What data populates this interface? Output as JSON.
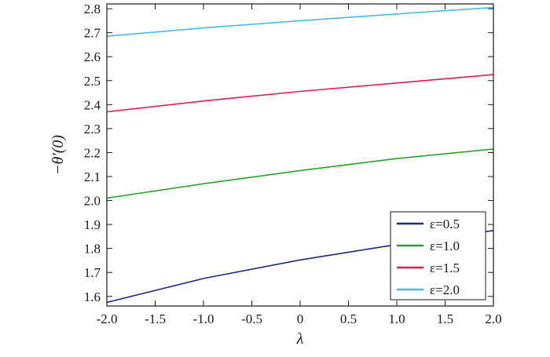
{
  "chart_data": {
    "type": "line",
    "title": "",
    "xlabel": "λ",
    "ylabel": "−θ′(0)",
    "xlim": [
      -2.0,
      2.0
    ],
    "ylim": [
      1.56,
      2.82
    ],
    "x_ticks": [
      -2.0,
      -1.5,
      -1.0,
      -0.5,
      0,
      0.5,
      1.0,
      1.5,
      2.0
    ],
    "x_tick_labels": [
      "-2.0",
      "-1.5",
      "-1.0",
      "-0.5",
      "0",
      "0.5",
      "1.0",
      "1.5",
      "2.0"
    ],
    "y_ticks": [
      1.6,
      1.7,
      1.8,
      1.9,
      2.0,
      2.1,
      2.2,
      2.3,
      2.4,
      2.5,
      2.6,
      2.7,
      2.8
    ],
    "y_tick_labels": [
      "1.6",
      "1.7",
      "1.8",
      "1.9",
      "2.0",
      "2.1",
      "2.2",
      "2.3",
      "2.4",
      "2.5",
      "2.6",
      "2.7",
      "2.8"
    ],
    "grid": false,
    "legend_position": "bottom-right",
    "series": [
      {
        "name": "ε=0.5",
        "color": "#1f2a7a",
        "x": [
          -2.0,
          -1.0,
          0.0,
          0.9,
          2.0
        ],
        "y": [
          1.575,
          1.675,
          1.752,
          1.81,
          1.875
        ]
      },
      {
        "name": "ε=1.0",
        "color": "#2ca02c",
        "x": [
          -2.0,
          -1.0,
          0.0,
          1.0,
          2.0
        ],
        "y": [
          2.01,
          2.07,
          2.125,
          2.175,
          2.215
        ]
      },
      {
        "name": "ε=1.5",
        "color": "#e5194b",
        "x": [
          -2.0,
          -1.0,
          0.0,
          1.0,
          2.0
        ],
        "y": [
          2.37,
          2.415,
          2.455,
          2.49,
          2.525
        ]
      },
      {
        "name": "ε=2.0",
        "color": "#4db8e0",
        "x": [
          -2.0,
          -1.0,
          0.0,
          1.0,
          2.0
        ],
        "y": [
          2.685,
          2.72,
          2.75,
          2.778,
          2.805
        ]
      }
    ]
  }
}
